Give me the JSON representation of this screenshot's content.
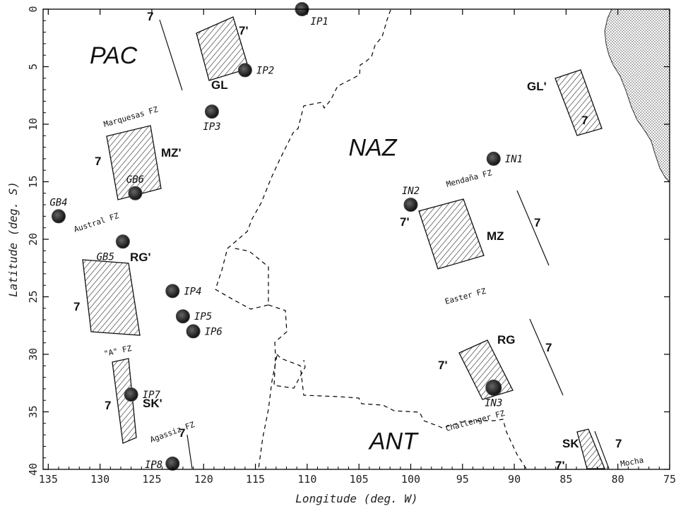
{
  "axes": {
    "xlabel": "Longitude (deg. W)",
    "ylabel": "Latitude (deg. S)",
    "x_ticks": [
      "135",
      "130",
      "125",
      "120",
      "115",
      "110",
      "105",
      "100",
      "95",
      "90",
      "85",
      "80",
      "75"
    ],
    "y_ticks": [
      "0",
      "5",
      "10",
      "15",
      "20",
      "25",
      "30",
      "35",
      "40"
    ],
    "x_range_deg_w": [
      135.5,
      75
    ],
    "y_range_deg_s": [
      0,
      40
    ]
  },
  "plates": [
    {
      "label": "PAC",
      "lon": 131,
      "lat": 4
    },
    {
      "label": "NAZ",
      "lon": 106,
      "lat": 12
    },
    {
      "label": "ANT",
      "lon": 104,
      "lat": 37.5
    }
  ],
  "sites": [
    {
      "id": "IP1",
      "lon": 110.5,
      "lat": 0,
      "label_side": "below-right"
    },
    {
      "id": "IP2",
      "lon": 116,
      "lat": 5.3,
      "label_side": "right"
    },
    {
      "id": "IP3",
      "lon": 119.2,
      "lat": 8.9,
      "label_side": "below"
    },
    {
      "id": "GB6",
      "lon": 126.6,
      "lat": 16,
      "label_side": "above"
    },
    {
      "id": "GB4",
      "lon": 134,
      "lat": 18,
      "label_side": "above"
    },
    {
      "id": "GB5",
      "lon": 127.8,
      "lat": 20.2,
      "label_side": "below-left"
    },
    {
      "id": "IP4",
      "lon": 123,
      "lat": 24.5,
      "label_side": "right"
    },
    {
      "id": "IP5",
      "lon": 122,
      "lat": 26.7,
      "label_side": "right"
    },
    {
      "id": "IP6",
      "lon": 121,
      "lat": 28,
      "label_side": "right"
    },
    {
      "id": "IP7",
      "lon": 127,
      "lat": 33.5,
      "label_side": "right"
    },
    {
      "id": "IP8",
      "lon": 123,
      "lat": 39.5,
      "label_side": "left"
    },
    {
      "id": "IN1",
      "lon": 92,
      "lat": 13,
      "label_side": "right"
    },
    {
      "id": "IN2",
      "lon": 100,
      "lat": 17,
      "label_side": "above"
    },
    {
      "id": "IN3",
      "lon": 92,
      "lat": 32.9,
      "label_side": "below"
    }
  ],
  "regions": [
    "GL",
    "GL'",
    "MZ",
    "MZ'",
    "RG",
    "RG'",
    "SK",
    "SK'"
  ],
  "isochron_labels": [
    "7",
    "7'"
  ],
  "fracture_zones": [
    "Marquesas FZ",
    "Austral FZ",
    "\"A\" FZ",
    "Agassiz FZ",
    "Mendaña FZ",
    "Easter FZ",
    "Challenger FZ",
    "Mocha"
  ],
  "colors": {
    "ink": "#111111",
    "background": "#ffffff",
    "land_stipple": "#666666"
  }
}
